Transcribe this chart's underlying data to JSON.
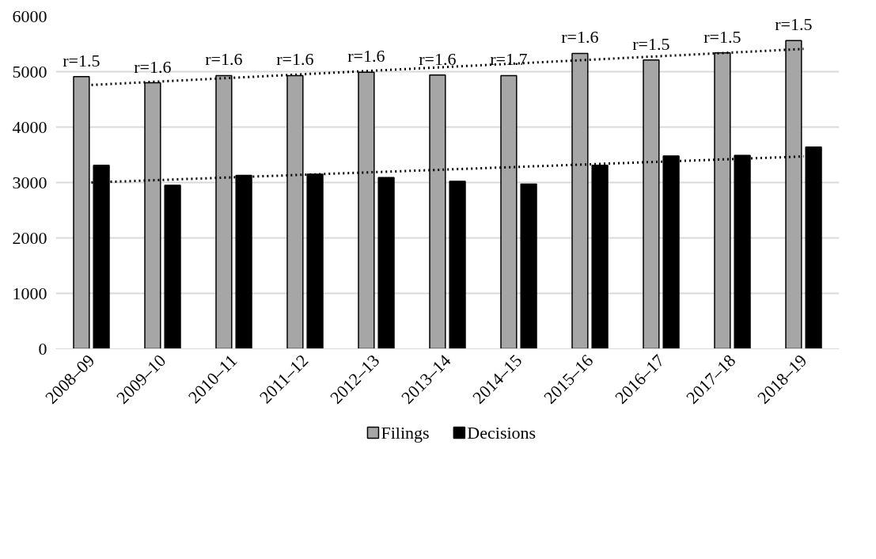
{
  "chart_data": {
    "type": "bar",
    "categories": [
      "2008–09",
      "2009–10",
      "2010–11",
      "2011–12",
      "2012–13",
      "2013–14",
      "2014–15",
      "2015–16",
      "2016–17",
      "2017–18",
      "2018–19"
    ],
    "series": [
      {
        "name": "Filings",
        "color": "#a6a6a6",
        "values": [
          4910,
          4800,
          4930,
          4930,
          4990,
          4940,
          4930,
          5330,
          5210,
          5340,
          5560
        ]
      },
      {
        "name": "Decisions",
        "color": "#000000",
        "values": [
          3310,
          2950,
          3130,
          3150,
          3090,
          3020,
          2970,
          3310,
          3480,
          3490,
          3640
        ]
      },
      {
        "type": "line",
        "color": "#000000",
        "line_style": "dotted",
        "x": [
          "2008–09",
          "2018–19"
        ],
        "values": [
          4760,
          5410
        ]
      },
      {
        "type": "line",
        "color": "#000000",
        "line_style": "dotted",
        "x": [
          "2008–09",
          "2018–19"
        ],
        "values": [
          3000,
          3470
        ]
      }
    ],
    "ylim": [
      0,
      6000
    ],
    "yticks": [
      0,
      1000,
      2000,
      3000,
      4000,
      5000,
      6000
    ],
    "grid": "y",
    "legend": "bottom",
    "annotations": [
      {
        "text": "r=1.5",
        "x": "2008–09",
        "y": 4910
      },
      {
        "text": "r=1.6",
        "x": "2009–10",
        "y": 4800
      },
      {
        "text": "r=1.6",
        "x": "2010–11",
        "y": 4930
      },
      {
        "text": "r=1.6",
        "x": "2011–12",
        "y": 4930
      },
      {
        "text": "r=1.6",
        "x": "2012–13",
        "y": 4990
      },
      {
        "text": "r=1.6",
        "x": "2013–14",
        "y": 4940
      },
      {
        "text": "r=1.7",
        "x": "2014–15",
        "y": 4930
      },
      {
        "text": "r=1.6",
        "x": "2015–16",
        "y": 5330
      },
      {
        "text": "r=1.5",
        "x": "2016–17",
        "y": 5210
      },
      {
        "text": "r=1.5",
        "x": "2017–18",
        "y": 5340
      },
      {
        "text": "r=1.5",
        "x": "2018–19",
        "y": 5560
      }
    ]
  }
}
